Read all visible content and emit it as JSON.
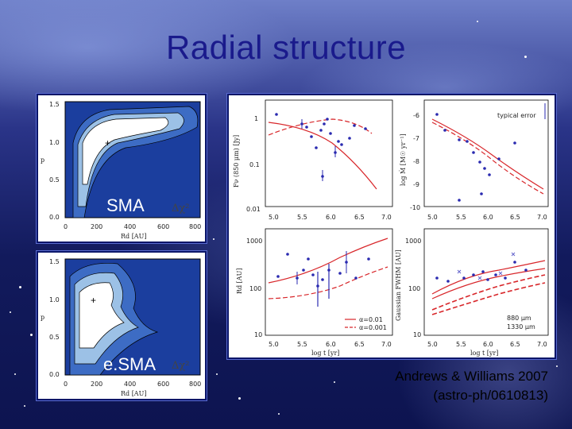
{
  "slide": {
    "title": "Radial structure",
    "caption_line1": "Andrews & Williams 2007",
    "caption_line2": "(astro-ph/0610813)"
  },
  "panels": {
    "sma": {
      "label": "SMA",
      "delta_label": "Δχ²",
      "xlabel": "Rd [AU]",
      "ylabel": "p",
      "xticks": [
        "0",
        "200",
        "400",
        "600",
        "800"
      ],
      "yticks": [
        "1.5",
        "1.0",
        "0.5",
        "0.0"
      ]
    },
    "esma": {
      "label": "e.SMA",
      "delta_label": "Δχ²",
      "xlabel": "Rd [AU]",
      "ylabel": "p",
      "xticks": [
        "0",
        "200",
        "400",
        "600",
        "800"
      ],
      "yticks": [
        "1.5",
        "1.0",
        "0.5",
        "0.0"
      ]
    },
    "fit": {
      "top_left_ylabel": "Fν (850 μm) [Jy]",
      "top_right_ylabel": "log Ṁ [M☉ yr⁻¹]",
      "bottom_left_ylabel": "Rd [AU]",
      "bottom_right_ylabel": "Gaussian FWHM [AU]",
      "xlabel": "log t [yr]",
      "xticks": [
        "5.0",
        "5.5",
        "6.0",
        "6.5",
        "7.0"
      ],
      "top_left_yticks": [
        "1",
        "0.1",
        "0.01"
      ],
      "top_right_yticks": [
        "-6",
        "-7",
        "-8",
        "-9",
        "-10"
      ],
      "bottom_left_yticks": [
        "1000",
        "100",
        "10"
      ],
      "bottom_right_yticks": [
        "1000",
        "100",
        "10"
      ],
      "legend_typical_error": "typical error",
      "legend_alpha1": "α=0.01",
      "legend_alpha2": "α=0.001",
      "legend_880": "880 μm",
      "legend_1330": "1330 μm"
    }
  },
  "colors": {
    "title": "#1a1a8c",
    "contour_dark": "#1b3e9e",
    "contour_mid": "#3d6cc4",
    "contour_light": "#9cc1e6",
    "model_red": "#d8262a",
    "points_blue": "#2a2ab0"
  }
}
